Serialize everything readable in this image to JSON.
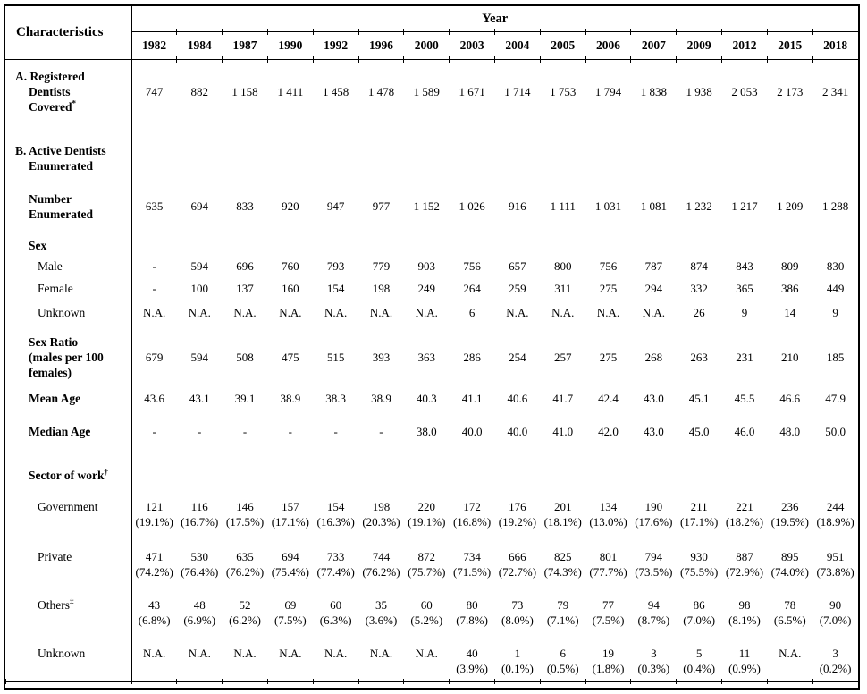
{
  "table": {
    "characteristics_label": "Characteristics",
    "year_label": "Year",
    "years": [
      "1982",
      "1984",
      "1987",
      "1990",
      "1992",
      "1996",
      "2000",
      "2003",
      "2004",
      "2005",
      "2006",
      "2007",
      "2009",
      "2012",
      "2015",
      "2018"
    ],
    "text_color": "#000000",
    "rows": [
      {
        "id": "registered-dentists-covered",
        "label_lines": [
          "A. Registered",
          "Dentists",
          "Covered"
        ],
        "sup": "*",
        "bold": true,
        "indent": 0,
        "values": [
          "747",
          "882",
          "1 158",
          "1 411",
          "1 458",
          "1 478",
          "1 589",
          "1 671",
          "1 714",
          "1 753",
          "1 794",
          "1 838",
          "1 938",
          "2 053",
          "2 173",
          "2 341"
        ]
      },
      {
        "id": "active-dentists-enumerated",
        "label_lines": [
          "B. Active Dentists",
          "Enumerated"
        ],
        "sup": "",
        "bold": true,
        "indent": 0,
        "values": []
      },
      {
        "id": "number-enumerated",
        "label_lines": [
          "Number",
          "Enumerated"
        ],
        "sup": "",
        "bold": true,
        "indent": 1,
        "values": [
          "635",
          "694",
          "833",
          "920",
          "947",
          "977",
          "1 152",
          "1 026",
          "916",
          "1 111",
          "1 031",
          "1 081",
          "1 232",
          "1 217",
          "1 209",
          "1 288"
        ]
      },
      {
        "id": "sex",
        "label_lines": [
          "Sex"
        ],
        "sup": "",
        "bold": true,
        "indent": 1,
        "values": []
      },
      {
        "id": "sex-male",
        "label_lines": [
          "Male"
        ],
        "sup": "",
        "bold": false,
        "indent": 2,
        "values": [
          "-",
          "594",
          "696",
          "760",
          "793",
          "779",
          "903",
          "756",
          "657",
          "800",
          "756",
          "787",
          "874",
          "843",
          "809",
          "830"
        ]
      },
      {
        "id": "sex-female",
        "label_lines": [
          "Female"
        ],
        "sup": "",
        "bold": false,
        "indent": 2,
        "values": [
          "-",
          "100",
          "137",
          "160",
          "154",
          "198",
          "249",
          "264",
          "259",
          "311",
          "275",
          "294",
          "332",
          "365",
          "386",
          "449"
        ]
      },
      {
        "id": "sex-unknown",
        "label_lines": [
          "Unknown"
        ],
        "sup": "",
        "bold": false,
        "indent": 2,
        "values": [
          "N.A.",
          "N.A.",
          "N.A.",
          "N.A.",
          "N.A.",
          "N.A.",
          "N.A.",
          "6",
          "N.A.",
          "N.A.",
          "N.A.",
          "N.A.",
          "26",
          "9",
          "14",
          "9"
        ]
      },
      {
        "id": "sex-ratio",
        "label_lines": [
          "Sex Ratio",
          "(males per 100",
          "females)"
        ],
        "sup": "",
        "bold": true,
        "indent": 1,
        "values": [
          "679",
          "594",
          "508",
          "475",
          "515",
          "393",
          "363",
          "286",
          "254",
          "257",
          "275",
          "268",
          "263",
          "231",
          "210",
          "185"
        ]
      },
      {
        "id": "mean-age",
        "label_lines": [
          "Mean Age"
        ],
        "sup": "",
        "bold": true,
        "indent": 1,
        "values": [
          "43.6",
          "43.1",
          "39.1",
          "38.9",
          "38.3",
          "38.9",
          "40.3",
          "41.1",
          "40.6",
          "41.7",
          "42.4",
          "43.0",
          "45.1",
          "45.5",
          "46.6",
          "47.9"
        ]
      },
      {
        "id": "median-age",
        "label_lines": [
          "Median Age"
        ],
        "sup": "",
        "bold": true,
        "indent": 1,
        "values": [
          "-",
          "-",
          "-",
          "-",
          "-",
          "-",
          "38.0",
          "40.0",
          "40.0",
          "41.0",
          "42.0",
          "43.0",
          "45.0",
          "46.0",
          "48.0",
          "50.0"
        ]
      },
      {
        "id": "sector-of-work",
        "label_lines": [
          "Sector of work"
        ],
        "sup": "†",
        "bold": true,
        "indent": 1,
        "values": []
      },
      {
        "id": "sector-government",
        "label_lines": [
          "Government"
        ],
        "sup": "",
        "bold": false,
        "indent": 2,
        "values": [
          [
            "121",
            "(19.1%)"
          ],
          [
            "116",
            "(16.7%)"
          ],
          [
            "146",
            "(17.5%)"
          ],
          [
            "157",
            "(17.1%)"
          ],
          [
            "154",
            "(16.3%)"
          ],
          [
            "198",
            "(20.3%)"
          ],
          [
            "220",
            "(19.1%)"
          ],
          [
            "172",
            "(16.8%)"
          ],
          [
            "176",
            "(19.2%)"
          ],
          [
            "201",
            "(18.1%)"
          ],
          [
            "134",
            "(13.0%)"
          ],
          [
            "190",
            "(17.6%)"
          ],
          [
            "211",
            "(17.1%)"
          ],
          [
            "221",
            "(18.2%)"
          ],
          [
            "236",
            "(19.5%)"
          ],
          [
            "244",
            "(18.9%)"
          ]
        ]
      },
      {
        "id": "sector-private",
        "label_lines": [
          "Private"
        ],
        "sup": "",
        "bold": false,
        "indent": 2,
        "values": [
          [
            "471",
            "(74.2%)"
          ],
          [
            "530",
            "(76.4%)"
          ],
          [
            "635",
            "(76.2%)"
          ],
          [
            "694",
            "(75.4%)"
          ],
          [
            "733",
            "(77.4%)"
          ],
          [
            "744",
            "(76.2%)"
          ],
          [
            "872",
            "(75.7%)"
          ],
          [
            "734",
            "(71.5%)"
          ],
          [
            "666",
            "(72.7%)"
          ],
          [
            "825",
            "(74.3%)"
          ],
          [
            "801",
            "(77.7%)"
          ],
          [
            "794",
            "(73.5%)"
          ],
          [
            "930",
            "(75.5%)"
          ],
          [
            "887",
            "(72.9%)"
          ],
          [
            "895",
            "(74.0%)"
          ],
          [
            "951",
            "(73.8%)"
          ]
        ]
      },
      {
        "id": "sector-others",
        "label_lines": [
          "Others"
        ],
        "sup": "‡",
        "bold": false,
        "indent": 2,
        "values": [
          [
            "43",
            "(6.8%)"
          ],
          [
            "48",
            "(6.9%)"
          ],
          [
            "52",
            "(6.2%)"
          ],
          [
            "69",
            "(7.5%)"
          ],
          [
            "60",
            "(6.3%)"
          ],
          [
            "35",
            "(3.6%)"
          ],
          [
            "60",
            "(5.2%)"
          ],
          [
            "80",
            "(7.8%)"
          ],
          [
            "73",
            "(8.0%)"
          ],
          [
            "79",
            "(7.1%)"
          ],
          [
            "77",
            "(7.5%)"
          ],
          [
            "94",
            "(8.7%)"
          ],
          [
            "86",
            "(7.0%)"
          ],
          [
            "98",
            "(8.1%)"
          ],
          [
            "78",
            "(6.5%)"
          ],
          [
            "90",
            "(7.0%)"
          ]
        ]
      },
      {
        "id": "sector-unknown",
        "label_lines": [
          "Unknown"
        ],
        "sup": "",
        "bold": false,
        "indent": 2,
        "values": [
          "N.A.",
          "N.A.",
          "N.A.",
          "N.A.",
          "N.A.",
          "N.A.",
          "N.A.",
          [
            "40",
            "(3.9%)"
          ],
          [
            "1",
            "(0.1%)"
          ],
          [
            "6",
            "(0.5%)"
          ],
          [
            "19",
            "(1.8%)"
          ],
          [
            "3",
            "(0.3%)"
          ],
          [
            "5",
            "(0.4%)"
          ],
          [
            "11",
            "(0.9%)"
          ],
          "N.A.",
          [
            "3",
            "(0.2%)"
          ]
        ]
      }
    ]
  }
}
